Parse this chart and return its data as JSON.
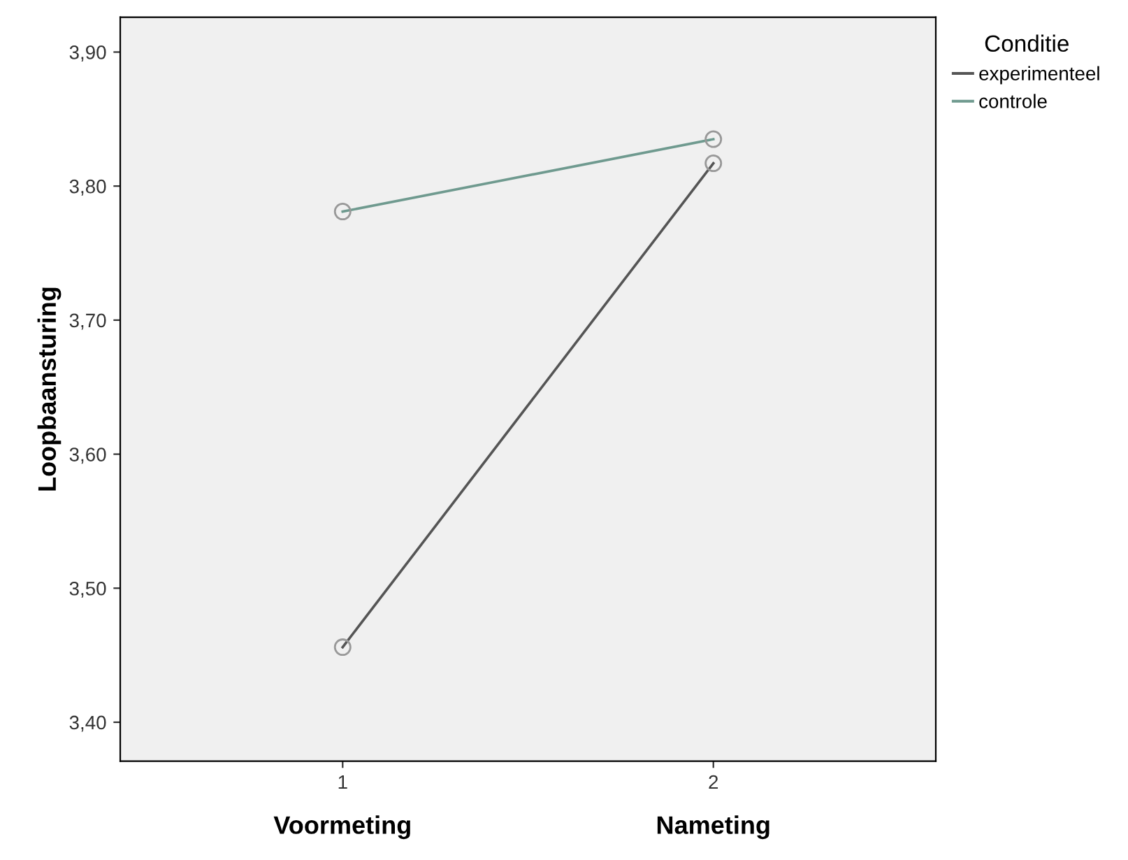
{
  "chart_data": {
    "type": "line",
    "xlabel": null,
    "ylabel": "Loopbaansturing",
    "legend_title": "Conditie",
    "categories": [
      "1",
      "2"
    ],
    "series": [
      {
        "name": "experimenteel",
        "color": "#555555",
        "values": [
          3.456,
          3.817
        ]
      },
      {
        "name": "controle",
        "color": "#6f9a8f",
        "values": [
          3.781,
          3.835
        ]
      }
    ],
    "ylim": [
      3.371,
      3.926
    ],
    "yticks": [
      {
        "value": 3.4,
        "label": "3,40"
      },
      {
        "value": 3.5,
        "label": "3,50"
      },
      {
        "value": 3.6,
        "label": "3,60"
      },
      {
        "value": 3.7,
        "label": "3,70"
      },
      {
        "value": 3.8,
        "label": "3,80"
      },
      {
        "value": 3.9,
        "label": "3,90"
      }
    ],
    "annotations": [
      "Voormeting",
      "Nameting"
    ],
    "marker": "circle",
    "line_style": "solid",
    "grid": false,
    "legend": "top right"
  }
}
